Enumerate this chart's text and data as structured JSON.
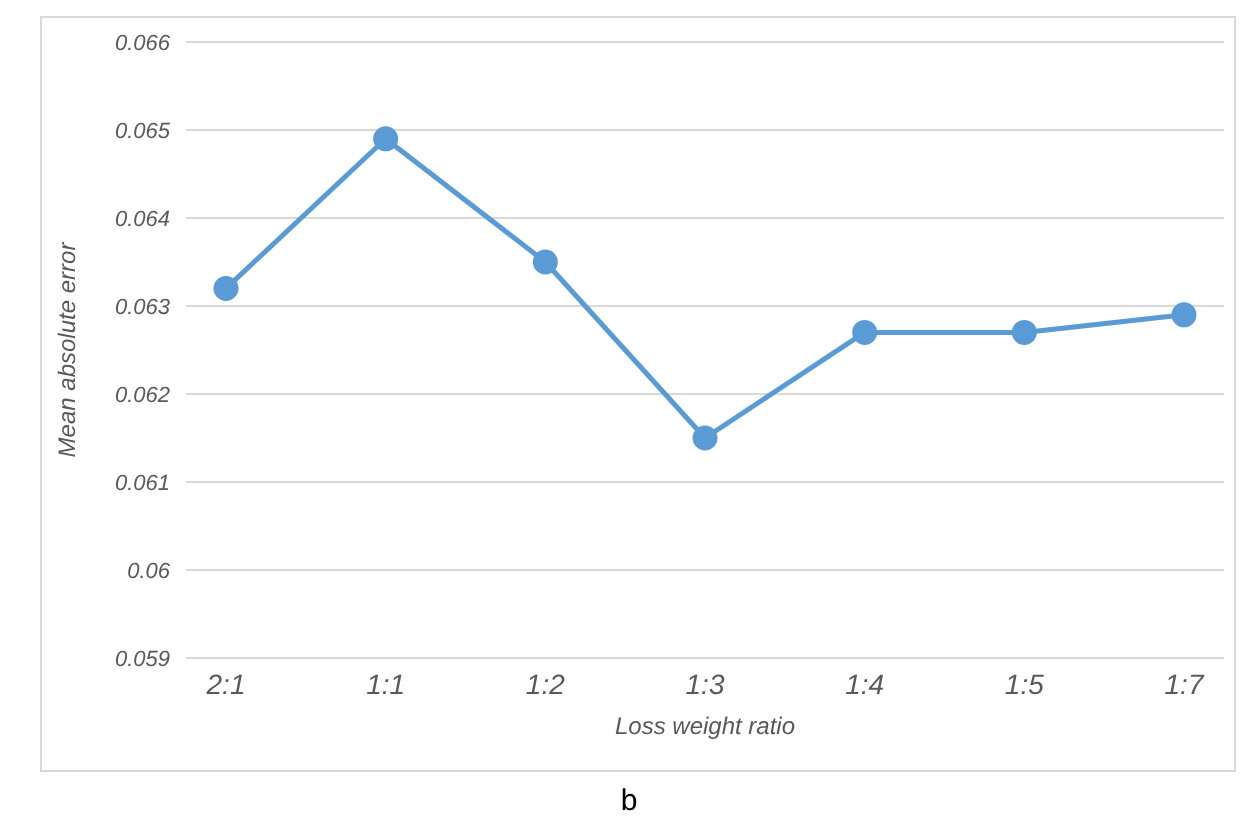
{
  "chart_data": {
    "type": "line",
    "xlabel": "Loss weight ratio",
    "ylabel": "Mean absolute error",
    "categories": [
      "2:1",
      "1:1",
      "1:2",
      "1:3",
      "1:4",
      "1:5",
      "1:7"
    ],
    "series": [
      {
        "color": "#5b9bd5",
        "values": [
          0.0632,
          0.0649,
          0.0635,
          0.0615,
          0.0627,
          0.0627,
          0.0629
        ]
      }
    ],
    "ylim": [
      0.059,
      0.066
    ],
    "yticks": [
      0.059,
      0.06,
      0.061,
      0.062,
      0.063,
      0.064,
      0.065,
      0.066
    ],
    "grid": "y",
    "marker": "circle",
    "line_style": "solid",
    "legend": false,
    "annotations": [
      "b"
    ]
  }
}
